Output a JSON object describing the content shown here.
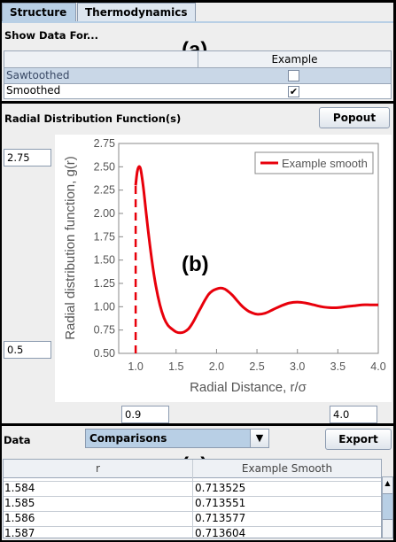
{
  "tabs": [
    {
      "label": "Structure",
      "active": true
    },
    {
      "label": "Thermodynamics",
      "active": false
    }
  ],
  "panel_a": {
    "annotation": "(a)",
    "show_data_label": "Show Data For...",
    "column_header": "Example",
    "rows": [
      {
        "label": "Sawtoothed",
        "checked": false
      },
      {
        "label": "Smoothed",
        "checked": true
      }
    ],
    "check_mark": "✔"
  },
  "panel_b": {
    "annotation": "(b)",
    "title": "Radial Distribution Function(s)",
    "popout_label": "Popout",
    "y_max_field": "2.75",
    "y_min_field": "0.5",
    "x_min_field": "0.9",
    "x_max_field": "4.0"
  },
  "chart_data": {
    "type": "line",
    "xlabel": "Radial Distance, r/σ",
    "ylabel": "Radial distribution function, g(r)",
    "xlim": [
      0.9,
      4.0
    ],
    "ylim": [
      0.5,
      2.75
    ],
    "xticks": [
      "1.0",
      "1.5",
      "2.0",
      "2.5",
      "3.0",
      "3.5",
      "4.0"
    ],
    "yticks": [
      "0.50",
      "0.75",
      "1.00",
      "1.25",
      "1.50",
      "1.75",
      "2.00",
      "2.25",
      "2.50",
      "2.75"
    ],
    "grid": false,
    "legend_position": "top-right",
    "series": [
      {
        "name": "Example smooth",
        "color": "#e8000b",
        "x": [
          1.0,
          1.02,
          1.04,
          1.06,
          1.08,
          1.1,
          1.15,
          1.2,
          1.25,
          1.3,
          1.35,
          1.4,
          1.45,
          1.5,
          1.55,
          1.6,
          1.65,
          1.7,
          1.75,
          1.8,
          1.85,
          1.9,
          1.95,
          2.0,
          2.05,
          2.1,
          2.15,
          2.2,
          2.25,
          2.3,
          2.35,
          2.4,
          2.5,
          2.6,
          2.7,
          2.8,
          2.9,
          3.0,
          3.1,
          3.2,
          3.3,
          3.4,
          3.5,
          3.6,
          3.7,
          3.8,
          3.9,
          4.0
        ],
        "y": [
          2.3,
          2.45,
          2.5,
          2.48,
          2.38,
          2.24,
          1.85,
          1.5,
          1.22,
          1.02,
          0.88,
          0.8,
          0.76,
          0.73,
          0.72,
          0.73,
          0.76,
          0.82,
          0.9,
          0.98,
          1.06,
          1.13,
          1.17,
          1.19,
          1.2,
          1.19,
          1.16,
          1.12,
          1.07,
          1.02,
          0.98,
          0.95,
          0.92,
          0.93,
          0.97,
          1.01,
          1.04,
          1.05,
          1.04,
          1.02,
          1.0,
          0.99,
          0.99,
          1.0,
          1.01,
          1.02,
          1.02,
          1.02
        ]
      }
    ],
    "dashed_segment": {
      "x": [
        1.0,
        1.0
      ],
      "y": [
        0.5,
        2.3
      ]
    }
  },
  "panel_c": {
    "annotation": "(c)",
    "data_label": "Data",
    "select_value": "Comparisons",
    "export_label": "Export",
    "columns": [
      "r",
      "Example Smooth"
    ],
    "rows": [
      [
        "1.584",
        "0.713525"
      ],
      [
        "1.585",
        "0.713551"
      ],
      [
        "1.586",
        "0.713577"
      ],
      [
        "1.587",
        "0.713604"
      ]
    ]
  }
}
